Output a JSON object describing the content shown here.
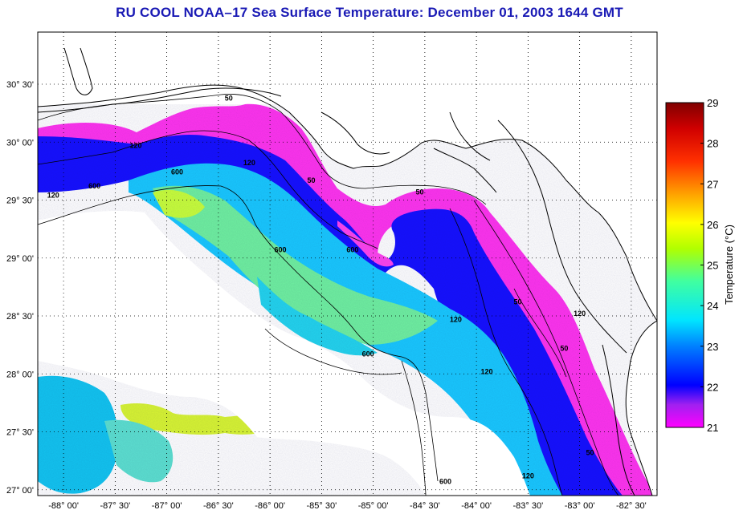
{
  "title": "RU COOL  NOAA–17  Sea Surface Temperature:  December 01, 2003 1644 GMT",
  "map": {
    "lon_range": [
      -88.25,
      -82.25
    ],
    "lat_range": [
      26.95,
      30.95
    ],
    "lon_ticks": [
      {
        "value": -88.0,
        "label": "-88° 00'"
      },
      {
        "value": -87.5,
        "label": "-87° 30'"
      },
      {
        "value": -87.0,
        "label": "-87° 00'"
      },
      {
        "value": -86.5,
        "label": "-86° 30'"
      },
      {
        "value": -86.0,
        "label": "-86° 00'"
      },
      {
        "value": -85.5,
        "label": "-85° 30'"
      },
      {
        "value": -85.0,
        "label": "-85° 00'"
      },
      {
        "value": -84.5,
        "label": "-84° 30'"
      },
      {
        "value": -84.0,
        "label": "-84° 00'"
      },
      {
        "value": -83.5,
        "label": "-83° 30'"
      },
      {
        "value": -83.0,
        "label": "-83° 00'"
      },
      {
        "value": -82.5,
        "label": "-82° 30'"
      }
    ],
    "lat_ticks": [
      {
        "value": 30.5,
        "label": "30° 30'"
      },
      {
        "value": 30.0,
        "label": "30° 00'"
      },
      {
        "value": 29.5,
        "label": "29° 30'"
      },
      {
        "value": 29.0,
        "label": "29° 00'"
      },
      {
        "value": 28.5,
        "label": "28° 30'"
      },
      {
        "value": 28.0,
        "label": "28° 00'"
      },
      {
        "value": 27.5,
        "label": "27° 30'"
      },
      {
        "value": 27.0,
        "label": "27° 00'"
      }
    ],
    "grid": "dotted",
    "contour_labels": [
      {
        "text": "50",
        "lon": -86.4,
        "lat": 30.36
      },
      {
        "text": "120",
        "lon": -87.3,
        "lat": 29.95
      },
      {
        "text": "600",
        "lon": -86.9,
        "lat": 29.72
      },
      {
        "text": "600",
        "lon": -87.7,
        "lat": 29.6
      },
      {
        "text": "120",
        "lon": -88.1,
        "lat": 29.52
      },
      {
        "text": "120",
        "lon": -86.2,
        "lat": 29.8
      },
      {
        "text": "50",
        "lon": -85.6,
        "lat": 29.65
      },
      {
        "text": "50",
        "lon": -84.55,
        "lat": 29.55
      },
      {
        "text": "600",
        "lon": -85.9,
        "lat": 29.05
      },
      {
        "text": "600",
        "lon": -85.2,
        "lat": 29.05
      },
      {
        "text": "50",
        "lon": -83.6,
        "lat": 28.6
      },
      {
        "text": "120",
        "lon": -84.2,
        "lat": 28.45
      },
      {
        "text": "600",
        "lon": -85.05,
        "lat": 28.15
      },
      {
        "text": "120",
        "lon": -83.9,
        "lat": 28.0
      },
      {
        "text": "120",
        "lon": -83.0,
        "lat": 28.5
      },
      {
        "text": "50",
        "lon": -83.15,
        "lat": 28.2
      },
      {
        "text": "50",
        "lon": -82.9,
        "lat": 27.3
      },
      {
        "text": "120",
        "lon": -83.5,
        "lat": 27.1
      },
      {
        "text": "600",
        "lon": -84.3,
        "lat": 27.05
      }
    ]
  },
  "colorbar": {
    "label": "Temperature (°C)",
    "min": 21,
    "max": 29,
    "ticks": [
      "21",
      "22",
      "23",
      "24",
      "25",
      "26",
      "27",
      "28",
      "29"
    ],
    "colors": [
      "#ff00ff",
      "#8a2be2",
      "#0000ff",
      "#00bfff",
      "#00ffff",
      "#7fff00",
      "#ffff00",
      "#ffa500",
      "#ff0000",
      "#8b0000"
    ]
  },
  "palette": {
    "title_color": "#1a1ab5",
    "land": "#ffffff",
    "cloud": "#ffffff"
  }
}
